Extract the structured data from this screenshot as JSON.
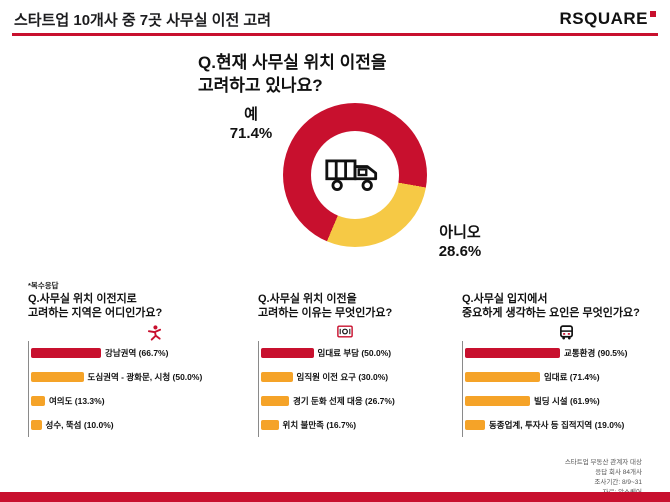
{
  "colors": {
    "red": "#c8102e",
    "yellow": "#f6c945",
    "orange": "#f5a328"
  },
  "header": {
    "title": "스타트업 10개사 중 7곳 사무실 이전 고려",
    "logo_text": "RSQUARE"
  },
  "donut": {
    "question_line1": "Q.현재 사무실 위치 이전을",
    "question_line2": "고려하고 있나요?",
    "yes_label": "예",
    "yes_value": "71.4%",
    "no_label": "아니오",
    "no_value": "28.6%"
  },
  "note": "*복수응답",
  "sections": [
    {
      "question_line1": "Q.사무실 위치 이전지로",
      "question_line2": "고려하는 지역은 어디인가요?",
      "bars": [
        {
          "label": "강남권역 (66.7%)",
          "value": 66.7
        },
        {
          "label": "도심권역 - 광화문, 시청 (50.0%)",
          "value": 50.0
        },
        {
          "label": "여의도 (13.3%)",
          "value": 13.3
        },
        {
          "label": "성수, 뚝섬 (10.0%)",
          "value": 10.0
        }
      ]
    },
    {
      "question_line1": "Q.사무실 위치 이전을",
      "question_line2": "고려하는 이유는 무엇인가요?",
      "bars": [
        {
          "label": "임대료 부담 (50.0%)",
          "value": 50.0
        },
        {
          "label": "임직원 이전 요구 (30.0%)",
          "value": 30.0
        },
        {
          "label": "경기 둔화 선제 대응 (26.7%)",
          "value": 26.7
        },
        {
          "label": "위치 불만족 (16.7%)",
          "value": 16.7
        }
      ]
    },
    {
      "question_line1": "Q.사무실 입지에서",
      "question_line2": "중요하게 생각하는 요인은 무엇인가요?",
      "bars": [
        {
          "label": "교통환경 (90.5%)",
          "value": 90.5
        },
        {
          "label": "임대료 (71.4%)",
          "value": 71.4
        },
        {
          "label": "빌딩 시설 (61.9%)",
          "value": 61.9
        },
        {
          "label": "동종업계, 투자사 등 집적지역 (19.0%)",
          "value": 19.0
        }
      ]
    }
  ],
  "footer": {
    "line1": "스타트업 부동산 관계자 대상",
    "line2": "응답 회사 84개사",
    "line3": "조사기간: 8/9~31",
    "line4": "자료: 알스퀘어"
  },
  "chart_data": [
    {
      "type": "pie",
      "title": "Q.현재 사무실 위치 이전을 고려하고 있나요?",
      "labels": [
        "예",
        "아니오"
      ],
      "values": [
        71.4,
        28.6
      ],
      "colors": [
        "#c8102e",
        "#f6c945"
      ],
      "style": "donut with truck icon in center"
    },
    {
      "type": "bar",
      "title": "Q.사무실 위치 이전지로 고려하는 지역은 어디인가요?",
      "categories": [
        "강남권역",
        "도심권역 - 광화문, 시청",
        "여의도",
        "성수, 뚝섬"
      ],
      "values": [
        66.7,
        50.0,
        13.3,
        10.0
      ],
      "unit": "%",
      "orientation": "horizontal",
      "note": "복수응답"
    },
    {
      "type": "bar",
      "title": "Q.사무실 위치 이전을 고려하는 이유는 무엇인가요?",
      "categories": [
        "임대료 부담",
        "임직원 이전 요구",
        "경기 둔화 선제 대응",
        "위치 불만족"
      ],
      "values": [
        50.0,
        30.0,
        26.7,
        16.7
      ],
      "unit": "%",
      "orientation": "horizontal",
      "note": "복수응답"
    },
    {
      "type": "bar",
      "title": "Q.사무실 입지에서 중요하게 생각하는 요인은 무엇인가요?",
      "categories": [
        "교통환경",
        "임대료",
        "빌딩 시설",
        "동종업계, 투자사 등 집적지역"
      ],
      "values": [
        90.5,
        71.4,
        61.9,
        19.0
      ],
      "unit": "%",
      "orientation": "horizontal",
      "note": "복수응답"
    }
  ]
}
